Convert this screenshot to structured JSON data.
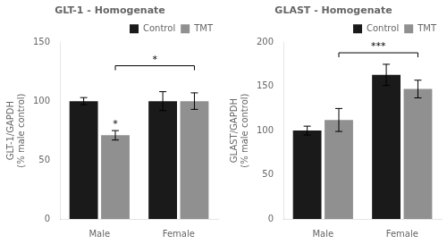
{
  "chart_data": [
    {
      "type": "bar",
      "title": "GLT-1 - Homogenate",
      "ylabel": "GLT-1/GAPDH\n(% male control)",
      "categories": [
        "Male",
        "Female"
      ],
      "series": [
        {
          "name": "Control",
          "color": "#1a1a1a",
          "values": [
            100,
            100
          ],
          "errors": [
            3,
            8
          ]
        },
        {
          "name": "TMT",
          "color": "#909090",
          "values": [
            71,
            100
          ],
          "errors": [
            4,
            7
          ]
        }
      ],
      "ylim": [
        0,
        150
      ],
      "yticks": [
        0,
        50,
        100,
        150
      ],
      "grid": false,
      "legend": "upper right",
      "annotations": [
        {
          "text": "*",
          "y": 130,
          "series": "TMT",
          "categories": [
            "Male",
            "Female"
          ]
        },
        {
          "text": "*",
          "y": 76,
          "series": "TMT",
          "categories": [
            "Male"
          ]
        }
      ]
    },
    {
      "type": "bar",
      "title": "GLAST - Homogenate",
      "ylabel": "GLAST/GAPDH\n(% male control)",
      "categories": [
        "Male",
        "Female"
      ],
      "series": [
        {
          "name": "Control",
          "color": "#1a1a1a",
          "values": [
            100,
            163
          ],
          "errors": [
            5,
            12
          ]
        },
        {
          "name": "TMT",
          "color": "#909090",
          "values": [
            112,
            147
          ],
          "errors": [
            13,
            10
          ]
        }
      ],
      "ylim": [
        0,
        200
      ],
      "yticks": [
        0,
        50,
        100,
        150,
        200
      ],
      "grid": false,
      "legend": "upper right",
      "annotations": [
        {
          "text": "***",
          "y": 188,
          "series": "TMT",
          "categories": [
            "Male",
            "Female"
          ]
        }
      ]
    }
  ]
}
